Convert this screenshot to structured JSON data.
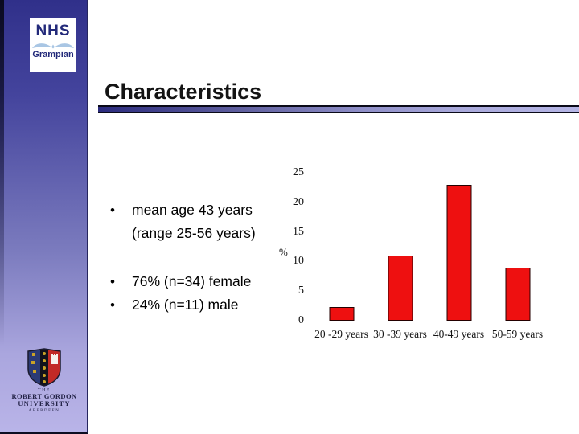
{
  "slide": {
    "title": "Characteristics"
  },
  "sidebar": {
    "nhs_logo": {
      "org": "NHS",
      "region": "Grampian"
    },
    "rgu_logo": {
      "the": "THE",
      "name": "ROBERT GORDON",
      "type": "UNIVERSITY",
      "city": "ABERDEEN"
    }
  },
  "bullets": [
    {
      "lines": [
        "mean age 43 years",
        "(range 25-56 years)"
      ]
    },
    {
      "lines": [
        "76% (n=34) female"
      ]
    },
    {
      "lines": [
        "24% (n=11) male"
      ]
    }
  ],
  "chart_data": {
    "type": "bar",
    "categories": [
      "20 -29 years",
      "30 -39 years",
      "40-49 years",
      "50-59 years"
    ],
    "values": [
      2.3,
      11,
      23,
      9
    ],
    "title": "",
    "xlabel": "",
    "ylabel": "%",
    "yticks": [
      0,
      5,
      10,
      15,
      20,
      25
    ],
    "ylim": [
      0,
      25
    ],
    "gridline_at": 20,
    "grid": "single horizontal line at 20 only, no axis lines",
    "legend_position": "none",
    "bar_color": "#ee1010"
  },
  "colors": {
    "bar_red": "#ee1010",
    "sidebar_top": "#30308a",
    "sidebar_bottom": "#b9b4e8",
    "nhs_navy": "#232a7a",
    "nhs_swoosh": "#a9c6e4",
    "rule_dark": "#2b2b7e",
    "rule_light": "#b6b6e6"
  }
}
